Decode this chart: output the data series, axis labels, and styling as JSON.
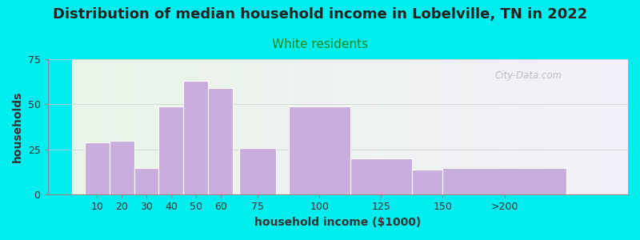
{
  "title": "Distribution of median household income in Lobelville, TN in 2022",
  "subtitle": "White residents",
  "xlabel": "household income ($1000)",
  "ylabel": "households",
  "bg_color": "#00EEEE",
  "bar_color": "#c8aedd",
  "bar_edge_color": "#ffffff",
  "categories": [
    "10",
    "20",
    "30",
    "40",
    "50",
    "60",
    "75",
    "100",
    "125",
    "150",
    ">200"
  ],
  "x_positions": [
    10,
    20,
    30,
    40,
    50,
    60,
    75,
    100,
    125,
    150,
    175
  ],
  "bar_widths": [
    10,
    10,
    10,
    10,
    10,
    10,
    15,
    25,
    25,
    25,
    50
  ],
  "values": [
    29,
    30,
    15,
    49,
    63,
    59,
    26,
    49,
    20,
    14,
    15
  ],
  "ylim": [
    0,
    75
  ],
  "yticks": [
    0,
    25,
    50,
    75
  ],
  "xlim": [
    0,
    225
  ],
  "title_fontsize": 13,
  "subtitle_fontsize": 11,
  "subtitle_color": "#228822",
  "axis_label_fontsize": 10,
  "tick_fontsize": 9,
  "watermark": "City-Data.com",
  "tick_positions": [
    10,
    20,
    30,
    40,
    50,
    60,
    75,
    100,
    125,
    150,
    175
  ],
  "tick_labels": [
    "10",
    "20",
    "30",
    "40",
    "50",
    "60",
    "75",
    "100",
    "125",
    "150",
    ">200"
  ]
}
